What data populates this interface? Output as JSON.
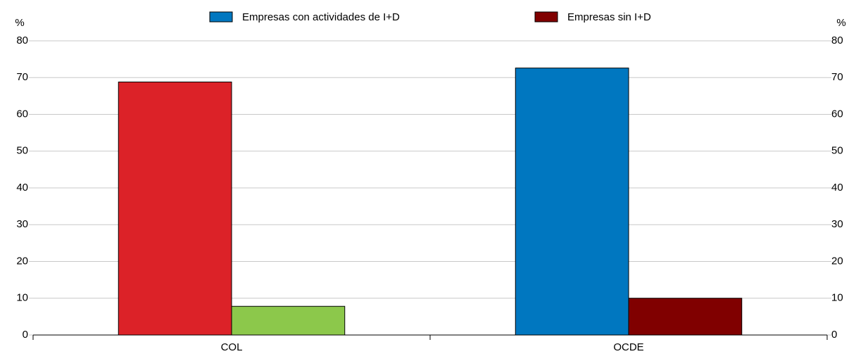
{
  "chart_data": {
    "type": "bar",
    "y_unit": "%",
    "categories": [
      "COL",
      "OCDE"
    ],
    "series": [
      {
        "name": "Empresas con actividades de I+D",
        "color": "#0077c0",
        "values": [
          68.8,
          72.6
        ],
        "colors": [
          "#dc2228",
          "#0077c0"
        ]
      },
      {
        "name": "Empresas sin I+D",
        "color": "#800000",
        "values": [
          7.8,
          10
        ],
        "colors": [
          "#8cc84b",
          "#800000"
        ]
      }
    ],
    "ylim": [
      0,
      80
    ],
    "yticks": [
      0,
      10,
      20,
      30,
      40,
      50,
      60,
      70,
      80
    ],
    "y2lim": [
      0,
      80
    ],
    "y2ticks": [
      0,
      10,
      20,
      30,
      40,
      50,
      60,
      70,
      80
    ],
    "grid": true
  }
}
